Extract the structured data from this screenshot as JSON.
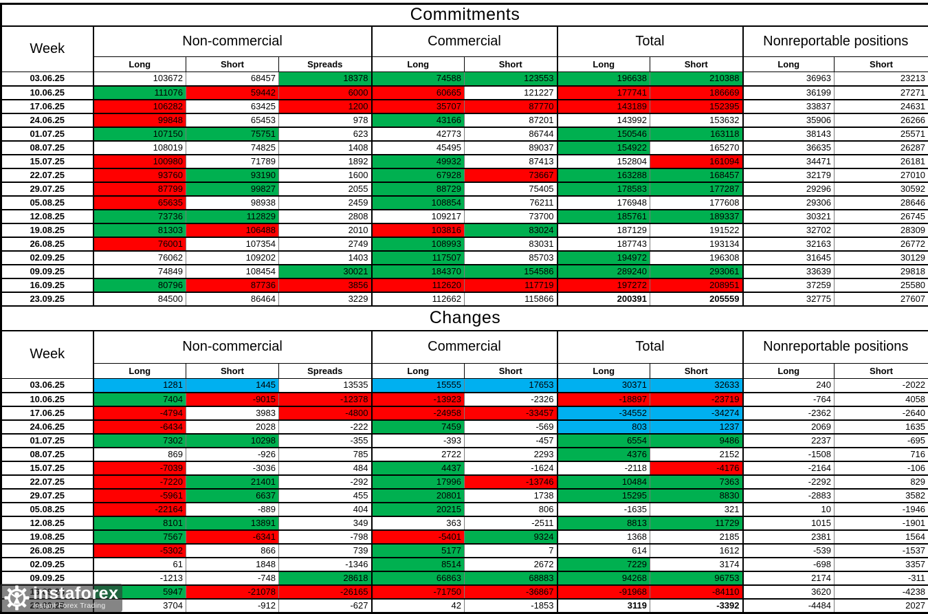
{
  "colors": {
    "w": "#FFFFFF",
    "g": "#00B050",
    "r": "#FF0000",
    "b": "#00B0F0"
  },
  "columns": {
    "week": "Week",
    "groups": [
      {
        "label": "Non-commercial",
        "cols": [
          "Long",
          "Short",
          "Spreads"
        ]
      },
      {
        "label": "Commercial",
        "cols": [
          "Long",
          "Short"
        ]
      },
      {
        "label": "Total",
        "cols": [
          "Long",
          "Short"
        ]
      },
      {
        "label": "Nonreportable positions",
        "cols": [
          "Long",
          "Short"
        ]
      }
    ]
  },
  "sections": [
    {
      "name": "commitments-section",
      "title": "Commitments",
      "rows": [
        {
          "week": "03.06.25",
          "values": [
            103672,
            68457,
            18378,
            74588,
            123553,
            196638,
            210388,
            36963,
            23213
          ],
          "bg": "wwgggggww"
        },
        {
          "week": "10.06.25",
          "values": [
            111076,
            59442,
            6000,
            60665,
            121227,
            177741,
            186669,
            36199,
            27271
          ],
          "bg": "grrrwrrww"
        },
        {
          "week": "17.06.25",
          "values": [
            106282,
            63425,
            1200,
            35707,
            87770,
            143189,
            152395,
            33837,
            24631
          ],
          "bg": "rwrrrrrww"
        },
        {
          "week": "24.06.25",
          "values": [
            99848,
            65453,
            978,
            43166,
            87201,
            143992,
            153632,
            35906,
            26266
          ],
          "bg": "rwwgwwwww"
        },
        {
          "week": "01.07.25",
          "values": [
            107150,
            75751,
            623,
            42773,
            86744,
            150546,
            163118,
            38143,
            25571
          ],
          "bg": "ggwwwggww"
        },
        {
          "week": "08.07.25",
          "values": [
            108019,
            74825,
            1408,
            45495,
            89037,
            154922,
            165270,
            36635,
            26287
          ],
          "bg": "wwwwwgwww"
        },
        {
          "week": "15.07.25",
          "values": [
            100980,
            71789,
            1892,
            49932,
            87413,
            152804,
            161094,
            34471,
            26181
          ],
          "bg": "rwwgwwrww"
        },
        {
          "week": "22.07.25",
          "values": [
            93760,
            93190,
            1600,
            67928,
            73667,
            163288,
            168457,
            32179,
            27010
          ],
          "bg": "rgwgrggww"
        },
        {
          "week": "29.07.25",
          "values": [
            87799,
            99827,
            2055,
            88729,
            75405,
            178583,
            177287,
            29296,
            30592
          ],
          "bg": "rgwgwggww"
        },
        {
          "week": "05.08.25",
          "values": [
            65635,
            98938,
            2459,
            108854,
            76211,
            176948,
            177608,
            29306,
            28646
          ],
          "bg": "rwwgwwwww"
        },
        {
          "week": "12.08.25",
          "values": [
            73736,
            112829,
            2808,
            109217,
            73700,
            185761,
            189337,
            30321,
            26745
          ],
          "bg": "ggwwwggww"
        },
        {
          "week": "19.08.25",
          "values": [
            81303,
            106488,
            2010,
            103816,
            83024,
            187129,
            191522,
            32702,
            28309
          ],
          "bg": "grwrgwwww"
        },
        {
          "week": "26.08.25",
          "values": [
            76001,
            107354,
            2749,
            108993,
            83031,
            187743,
            193134,
            32163,
            26772
          ],
          "bg": "rwwgwwwww"
        },
        {
          "week": "02.09.25",
          "values": [
            76062,
            109202,
            1403,
            117507,
            85703,
            194972,
            196308,
            31645,
            30129
          ],
          "bg": "wwwgwgwww"
        },
        {
          "week": "09.09.25",
          "values": [
            74849,
            108454,
            30021,
            184370,
            154586,
            289240,
            293061,
            33639,
            29818
          ],
          "bg": "wwgggggww"
        },
        {
          "week": "16.09.25",
          "values": [
            80796,
            87736,
            3856,
            112620,
            117719,
            197272,
            208951,
            37259,
            25580
          ],
          "bg": "grrrrrrww"
        },
        {
          "week": "23.09.25",
          "values": [
            84500,
            86464,
            3229,
            112662,
            115866,
            200391,
            205559,
            32775,
            27607
          ],
          "bg": "wwwwwwwww",
          "bold": [
            5,
            6
          ]
        }
      ]
    },
    {
      "name": "changes-section",
      "title": "Changes",
      "rows": [
        {
          "week": "03.06.25",
          "values": [
            1281,
            1445,
            13535,
            15555,
            17653,
            30371,
            32633,
            240,
            -2022
          ],
          "bg": "bbwbbbbww"
        },
        {
          "week": "10.06.25",
          "values": [
            7404,
            -9015,
            -12378,
            -13923,
            -2326,
            -18897,
            -23719,
            -764,
            4058
          ],
          "bg": "grrrwrrww"
        },
        {
          "week": "17.06.25",
          "values": [
            -4794,
            3983,
            -4800,
            -24958,
            -33457,
            -34552,
            -34274,
            -2362,
            -2640
          ],
          "bg": "rwrrrbbww"
        },
        {
          "week": "24.06.25",
          "values": [
            -6434,
            2028,
            -222,
            7459,
            -569,
            803,
            1237,
            2069,
            1635
          ],
          "bg": "rwwgwbbww"
        },
        {
          "week": "01.07.25",
          "values": [
            7302,
            10298,
            -355,
            -393,
            -457,
            6554,
            9486,
            2237,
            -695
          ],
          "bg": "ggwwwggww"
        },
        {
          "week": "08.07.25",
          "values": [
            869,
            -926,
            785,
            2722,
            2293,
            4376,
            2152,
            -1508,
            716
          ],
          "bg": "wwwwwgwww"
        },
        {
          "week": "15.07.25",
          "values": [
            -7039,
            -3036,
            484,
            4437,
            -1624,
            -2118,
            -4176,
            -2164,
            -106
          ],
          "bg": "rwwgwwrww"
        },
        {
          "week": "22.07.25",
          "values": [
            -7220,
            21401,
            -292,
            17996,
            -13746,
            10484,
            7363,
            -2292,
            829
          ],
          "bg": "rgwgrggww"
        },
        {
          "week": "29.07.25",
          "values": [
            -5961,
            6637,
            455,
            20801,
            1738,
            15295,
            8830,
            -2883,
            3582
          ],
          "bg": "rgwgwggww"
        },
        {
          "week": "05.08.25",
          "values": [
            -22164,
            -889,
            404,
            20215,
            806,
            -1635,
            321,
            10,
            -1946
          ],
          "bg": "rwwgwwwww"
        },
        {
          "week": "12.08.25",
          "values": [
            8101,
            13891,
            349,
            363,
            -2511,
            8813,
            11729,
            1015,
            -1901
          ],
          "bg": "ggwwwggww"
        },
        {
          "week": "19.08.25",
          "values": [
            7567,
            -6341,
            -798,
            -5401,
            9324,
            1368,
            2185,
            2381,
            1564
          ],
          "bg": "grwrgwwww"
        },
        {
          "week": "26.08.25",
          "values": [
            -5302,
            866,
            739,
            5177,
            7,
            614,
            1612,
            -539,
            -1537
          ],
          "bg": "rwwgwwwww"
        },
        {
          "week": "02.09.25",
          "values": [
            61,
            1848,
            -1346,
            8514,
            2672,
            7229,
            3174,
            -698,
            3357
          ],
          "bg": "wwwgwgwww"
        },
        {
          "week": "09.09.25",
          "values": [
            -1213,
            -748,
            28618,
            66863,
            68883,
            94268,
            96753,
            2174,
            -311
          ],
          "bg": "wwgggggww"
        },
        {
          "week": "16.09.25",
          "values": [
            5947,
            -21078,
            -26165,
            -71750,
            -36867,
            -91968,
            -84110,
            3620,
            -4238
          ],
          "bg": "grrrrrrww"
        },
        {
          "week": "23.09.25",
          "values": [
            3704,
            -912,
            -627,
            42,
            -1853,
            3119,
            -3392,
            -4484,
            2027
          ],
          "bg": "wwwwwwwww",
          "bold": [
            5,
            6
          ]
        }
      ]
    }
  ],
  "watermark": {
    "brand": "instaforex",
    "tagline": "Instant Forex Trading"
  }
}
